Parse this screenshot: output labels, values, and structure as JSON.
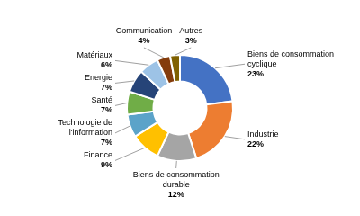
{
  "chart_data": {
    "type": "doughnut",
    "categories": [
      "Biens de consommation\ncyclique",
      "Industrie",
      "Biens de consommation\ndurable",
      "Finance",
      "Technologie de\nl'information",
      "Santé",
      "Energie",
      "Matériaux",
      "Communication",
      "Autres"
    ],
    "values": [
      23,
      22,
      12,
      9,
      7,
      7,
      7,
      6,
      4,
      3
    ],
    "value_labels": [
      "23%",
      "22%",
      "12%",
      "9%",
      "7%",
      "7%",
      "7%",
      "6%",
      "4%",
      "3%"
    ],
    "colors": [
      "#4472C4",
      "#ED7D31",
      "#A5A5A5",
      "#FFC000",
      "#5BA3C9",
      "#70AD47",
      "#264478",
      "#9DC3E6",
      "#843C0C",
      "#7F6000"
    ],
    "data_labels": true
  }
}
